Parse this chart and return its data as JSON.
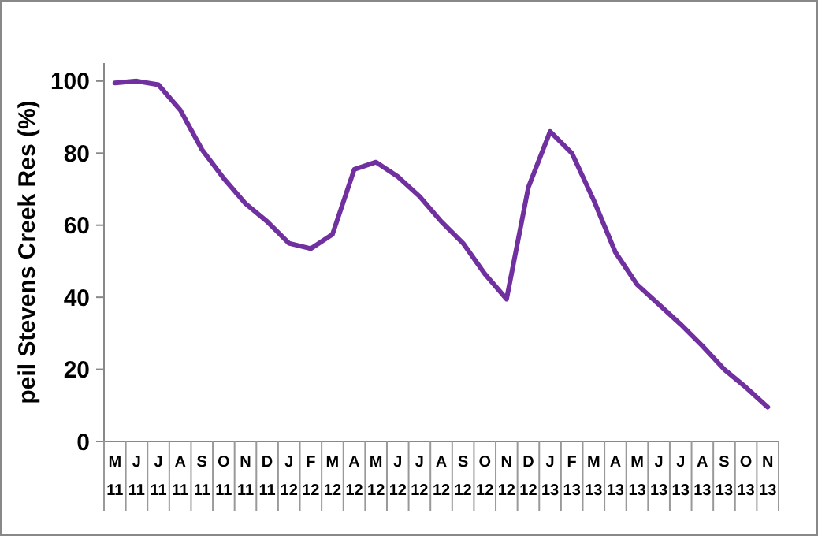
{
  "chart_data": {
    "type": "line",
    "ylabel": "peil Stevens Creek Res (%)",
    "categories": [
      "M\n11",
      "J\n11",
      "J\n11",
      "A\n11",
      "S\n11",
      "O\n11",
      "N\n11",
      "D\n11",
      "J\n12",
      "F\n12",
      "M\n12",
      "A\n12",
      "M\n12",
      "J\n12",
      "J\n12",
      "A\n12",
      "S\n12",
      "O\n12",
      "N\n12",
      "D\n12",
      "J\n13",
      "F\n13",
      "M\n13",
      "A\n13",
      "M\n13",
      "J\n13",
      "J\n13",
      "A\n13",
      "S\n13",
      "O\n13",
      "N\n13"
    ],
    "series": [
      {
        "color": "#7030a0",
        "values": [
          99.5,
          100,
          99,
          92,
          81,
          73,
          66,
          61,
          55,
          53.5,
          57.5,
          75.5,
          77.5,
          73.5,
          68,
          61,
          55,
          46.5,
          39.5,
          70.5,
          86,
          80,
          67,
          52.5,
          43.5,
          38,
          32.5,
          26.5,
          20,
          15,
          9.5
        ]
      }
    ],
    "ylim": [
      0,
      105
    ],
    "yticks": [
      0,
      20,
      40,
      60,
      80,
      100
    ],
    "grid": false,
    "marker": "none",
    "line_style": "solid"
  }
}
